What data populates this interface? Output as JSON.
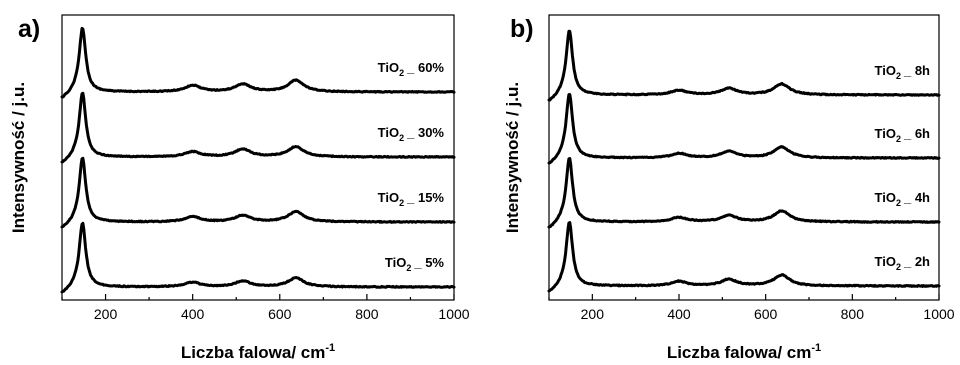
{
  "chart_data": [
    {
      "type": "line",
      "panel_label": "a)",
      "xlabel": "Liczba falowa/ cm",
      "xlabel_sup": "-1",
      "ylabel": "Intensywność / j.u.",
      "xlim": [
        100,
        1000
      ],
      "xticks": [
        200,
        400,
        600,
        800,
        1000
      ],
      "xtick_labels": [
        "200",
        "400",
        "600",
        "800",
        "1000"
      ],
      "grid": false,
      "legend": "none (labels beside each trace)",
      "series": [
        {
          "base": "TiO",
          "sub": "2",
          "suffix": "_ 60%",
          "offset": 0,
          "peaks": [
            [
              147,
              1.0
            ],
            [
              400,
              0.1
            ],
            [
              515,
              0.12
            ],
            [
              637,
              0.18
            ]
          ]
        },
        {
          "base": "TiO",
          "sub": "2",
          "suffix": "_ 30%",
          "offset": 1,
          "peaks": [
            [
              147,
              1.0
            ],
            [
              400,
              0.08
            ],
            [
              515,
              0.12
            ],
            [
              637,
              0.16
            ]
          ]
        },
        {
          "base": "TiO",
          "sub": "2",
          "suffix": "_ 15%",
          "offset": 2,
          "peaks": [
            [
              147,
              1.0
            ],
            [
              400,
              0.08
            ],
            [
              515,
              0.1
            ],
            [
              637,
              0.16
            ]
          ]
        },
        {
          "base": "TiO",
          "sub": "2",
          "suffix": "_ 5%",
          "offset": 3,
          "peaks": [
            [
              147,
              1.0
            ],
            [
              400,
              0.07
            ],
            [
              515,
              0.09
            ],
            [
              637,
              0.14
            ]
          ]
        }
      ]
    },
    {
      "type": "line",
      "panel_label": "b)",
      "xlabel": "Liczba falowa/ cm",
      "xlabel_sup": "-1",
      "ylabel": "Intensywność / j.u.",
      "xlim": [
        100,
        1000
      ],
      "xticks": [
        200,
        400,
        600,
        800,
        1000
      ],
      "xtick_labels": [
        "200",
        "400",
        "600",
        "800",
        "1000"
      ],
      "grid": false,
      "legend": "none (labels beside each trace)",
      "series": [
        {
          "base": "TiO",
          "sub": "2",
          "suffix": "_ 8h",
          "offset": 0,
          "peaks": [
            [
              147,
              1.0
            ],
            [
              400,
              0.07
            ],
            [
              515,
              0.1
            ],
            [
              637,
              0.17
            ]
          ]
        },
        {
          "base": "TiO",
          "sub": "2",
          "suffix": "_ 6h",
          "offset": 1,
          "peaks": [
            [
              147,
              1.0
            ],
            [
              400,
              0.07
            ],
            [
              515,
              0.1
            ],
            [
              637,
              0.17
            ]
          ]
        },
        {
          "base": "TiO",
          "sub": "2",
          "suffix": "_ 4h",
          "offset": 2,
          "peaks": [
            [
              147,
              1.0
            ],
            [
              400,
              0.07
            ],
            [
              515,
              0.1
            ],
            [
              637,
              0.17
            ]
          ]
        },
        {
          "base": "TiO",
          "sub": "2",
          "suffix": "_ 2h",
          "offset": 3,
          "peaks": [
            [
              147,
              1.0
            ],
            [
              400,
              0.07
            ],
            [
              515,
              0.1
            ],
            [
              637,
              0.17
            ]
          ]
        }
      ]
    }
  ]
}
